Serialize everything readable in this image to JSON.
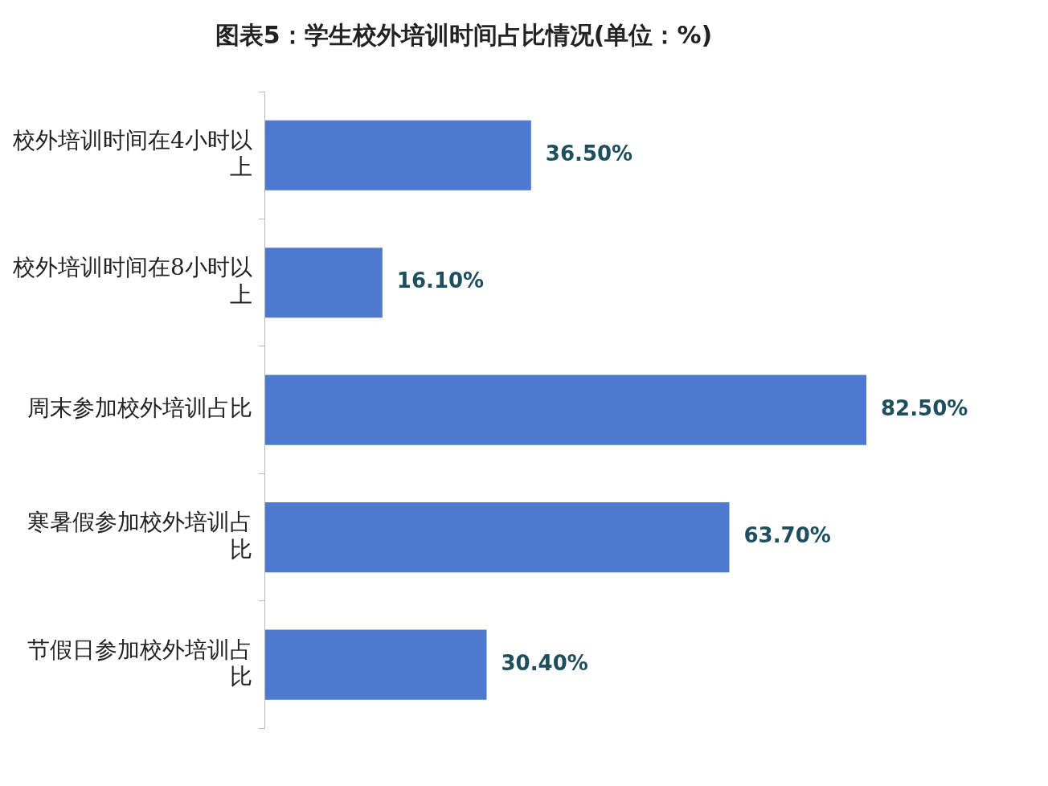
{
  "chart_data": {
    "type": "bar",
    "orientation": "horizontal",
    "title": "图表5：学生校外培训时间占比情况(单位：%)",
    "categories": [
      "校外培训时间在4小时以上",
      "校外培训时间在8小时以上",
      "周末参加校外培训占比",
      "寒暑假参加校外培训占比",
      "节假日参加校外培训占比"
    ],
    "values": [
      36.5,
      16.1,
      82.5,
      63.7,
      30.4
    ],
    "value_labels": [
      "36.50%",
      "16.10%",
      "82.50%",
      "63.70%",
      "30.40%"
    ],
    "color": "#4d79cf",
    "grid": false,
    "legend": false,
    "tick_labels": "y"
  }
}
